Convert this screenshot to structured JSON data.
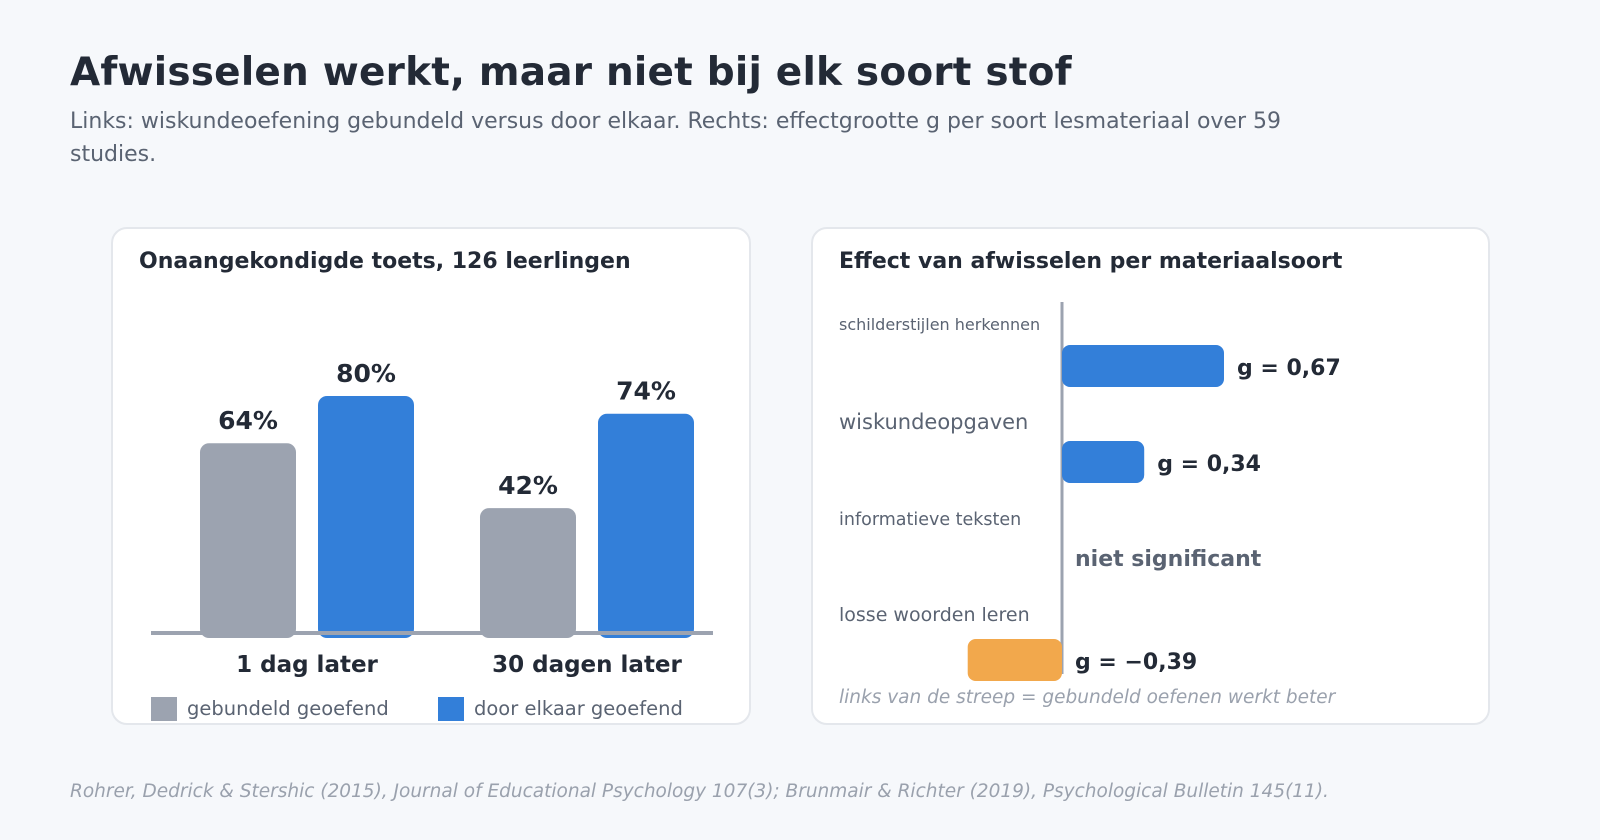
{
  "header": {
    "title": "Afwisselen werkt, maar niet bij elk soort stof",
    "subtitle": "Links: wiskundeoefening gebundeld versus door elkaar. Rechts: effectgrootte g per soort lesmateriaal over 59 studies."
  },
  "colors": {
    "blocked": "#9ca3b0",
    "interleaved": "#337fd9",
    "negative": "#f2a84c",
    "axis": "#9ca3b0"
  },
  "chart_data": [
    {
      "type": "bar",
      "title": "Onaangekondigde toets, 126 leerlingen",
      "categories": [
        "1 dag later",
        "30 dagen later"
      ],
      "series": [
        {
          "name": "gebundeld geoefend",
          "values": [
            64,
            42
          ],
          "labels": [
            "64%",
            "42%"
          ],
          "color": "#9ca3b0"
        },
        {
          "name": "door elkaar geoefend",
          "values": [
            80,
            74
          ],
          "labels": [
            "80%",
            "74%"
          ],
          "color": "#337fd9"
        }
      ],
      "ylim": [
        0,
        100
      ],
      "legend": "bottom"
    },
    {
      "type": "bar",
      "orientation": "horizontal",
      "title": "Effect van afwisselen per materiaalsoort",
      "categories": [
        "schilderstijlen herkennen",
        "wiskundeopgaven",
        "informatieve teksten",
        "losse woorden leren"
      ],
      "values": [
        0.67,
        0.34,
        null,
        -0.39
      ],
      "labels": [
        "g = 0,67",
        "g = 0,34",
        "niet significant",
        "g = −0,39"
      ],
      "note": "links van de streep = gebundeld oefenen werkt beter"
    }
  ],
  "footer": {
    "source": "Rohrer, Dedrick & Stershic (2015), Journal of Educational Psychology 107(3); Brunmair & Richter (2019), Psychological Bulletin 145(11)."
  }
}
